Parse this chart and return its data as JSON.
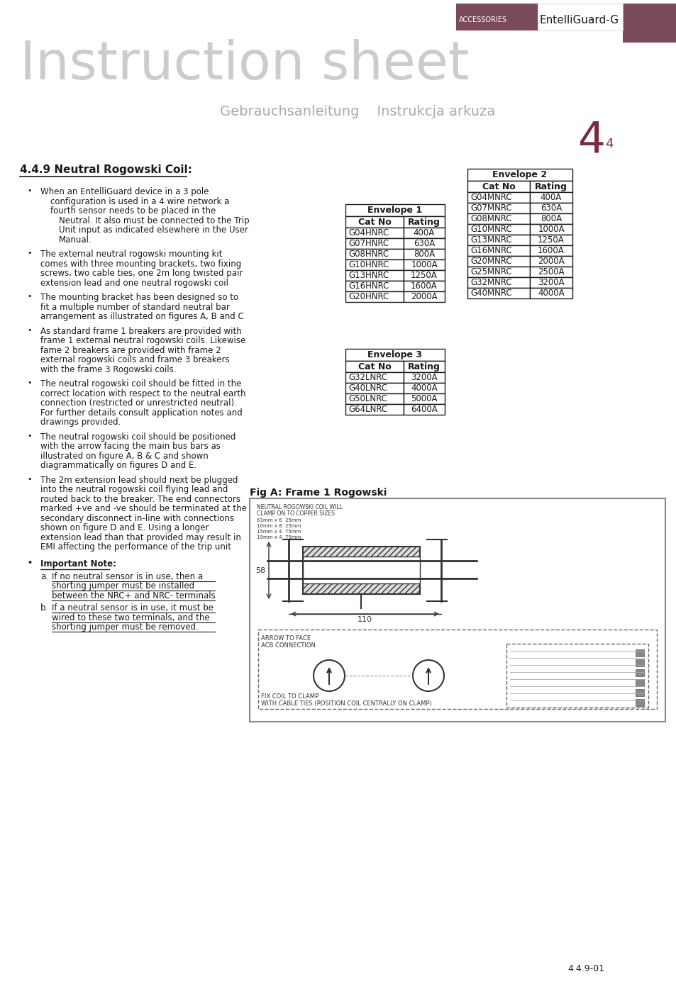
{
  "page_bg": "#ffffff",
  "header_title": "Instruction sheet",
  "header_subtitle": "Gebrauchsanleitung    Instrukcja arkuza",
  "header_title_color": "#cccccc",
  "header_subtitle_color": "#aaaaaa",
  "accessories_bg": "#7a4a5a",
  "accessories_text": "ACCESSORIES",
  "entelli_text": "EntelliGuard-G",
  "page_number": "4",
  "page_number_sub": "4",
  "page_number_color": "#7a2a3a",
  "section_title": "4.4.9 Neutral Rogowski Coil:",
  "important_note_title": "Important Note:",
  "important_note_a": [
    "If no neutral sensor is in use, then a",
    "shorting jumper must be installed",
    "between the NRC+ and NRC- terminals"
  ],
  "important_note_b": [
    "If a neutral sensor is in use, it must be",
    "wired to these two terminals, and the",
    "shorting jumper must be removed."
  ],
  "env1_title": "Envelope 1",
  "env1_data": [
    [
      "G04HNRC",
      "400A"
    ],
    [
      "G07HNRC",
      "630A"
    ],
    [
      "G08HNRC",
      "800A"
    ],
    [
      "G10HNRC",
      "1000A"
    ],
    [
      "G13HNRC",
      "1250A"
    ],
    [
      "G16HNRC",
      "1600A"
    ],
    [
      "G20HNRC",
      "2000A"
    ]
  ],
  "env2_title": "Envelope 2",
  "env2_data": [
    [
      "G04MNRC",
      "400A"
    ],
    [
      "G07MNRC",
      "630A"
    ],
    [
      "G08MNRC",
      "800A"
    ],
    [
      "G10MNRC",
      "1000A"
    ],
    [
      "G13MNRC",
      "1250A"
    ],
    [
      "G16MNRC",
      "1600A"
    ],
    [
      "G20MNRC",
      "2000A"
    ],
    [
      "G25MNRC",
      "2500A"
    ],
    [
      "G32MNRC",
      "3200A"
    ],
    [
      "G40MNRC",
      "4000A"
    ]
  ],
  "env3_title": "Envelope 3",
  "env3_data": [
    [
      "G32LNRC",
      "3200A"
    ],
    [
      "G40LNRC",
      "4000A"
    ],
    [
      "G50LNRC",
      "5000A"
    ],
    [
      "G64LNRC",
      "6400A"
    ]
  ],
  "fig_caption": "Fig A: Frame 1 Rogowski",
  "footer_text": "4.4.9-01",
  "text_color": "#1a1a1a",
  "coil_note_lines": [
    "NEUTRAL ROGOWSKI COIL WILL",
    "CLAMP ON TO COPPER SIZES"
  ],
  "coil_size_lines": [
    "63mm x 6  25mm",
    "10mm x 8  25mm",
    "15mm x 4  75mm",
    "19mm x 4  75mm"
  ],
  "arrow_text": [
    "ARROW TO FACE",
    "ACB CONNECTION"
  ],
  "fix_coil_text": [
    "FIX COIL TO CLAMP",
    "WITH CABLE TIES (POSITION COIL CENTRALLY ON CLAMP)"
  ],
  "dim_110": "110",
  "dim_58": "58",
  "bullet_items": [
    [
      "When an EntelliGuard device in a 3 pole",
      "configuration is used in a 4 wire network a fourth sensor needs to be placed in the",
      "Neutral. It also must be connected to the Trip Unit input as indicated elsewhere in the User Manual."
    ],
    [
      "The external neutral rogowski mounting kit comes with three mounting brackets, two fixing screws, two cable ties, one 2m long twisted pair extension lead and one neutral rogowski coil"
    ],
    [
      "The mounting bracket has been designed so to fit a multiple number of standard neutral bar arrangement as illustrated on figures A, B and C"
    ],
    [
      "As standard frame 1 breakers are provided with frame 1 external neutral rogowski coils. Likewise fame 2 breakers are provided with frame 2 external rogowski coils and frame 3 breakers with the frame 3 Rogowski coils."
    ],
    [
      "The neutral rogowski coil should be fitted in the correct location with respect to the neutral earth connection (restricted or unrestricted neutral). For further details consult application notes and drawings provided."
    ],
    [
      "The neutral rogowski coil should be positioned with the arrow facing the main bus bars as illustrated on figure A, B & C and shown diagrammatically on figures D and E."
    ],
    [
      "The 2m extension lead should next be plugged into the neutral rogowski coil flying lead and routed back to the breaker. The end connectors marked +ve and -ve should be terminated at the secondary disconnect in-line with connections shown on figure D and E. Using a longer extension lead than that provided may result in EMI affecting the performance of the trip unit"
    ]
  ]
}
